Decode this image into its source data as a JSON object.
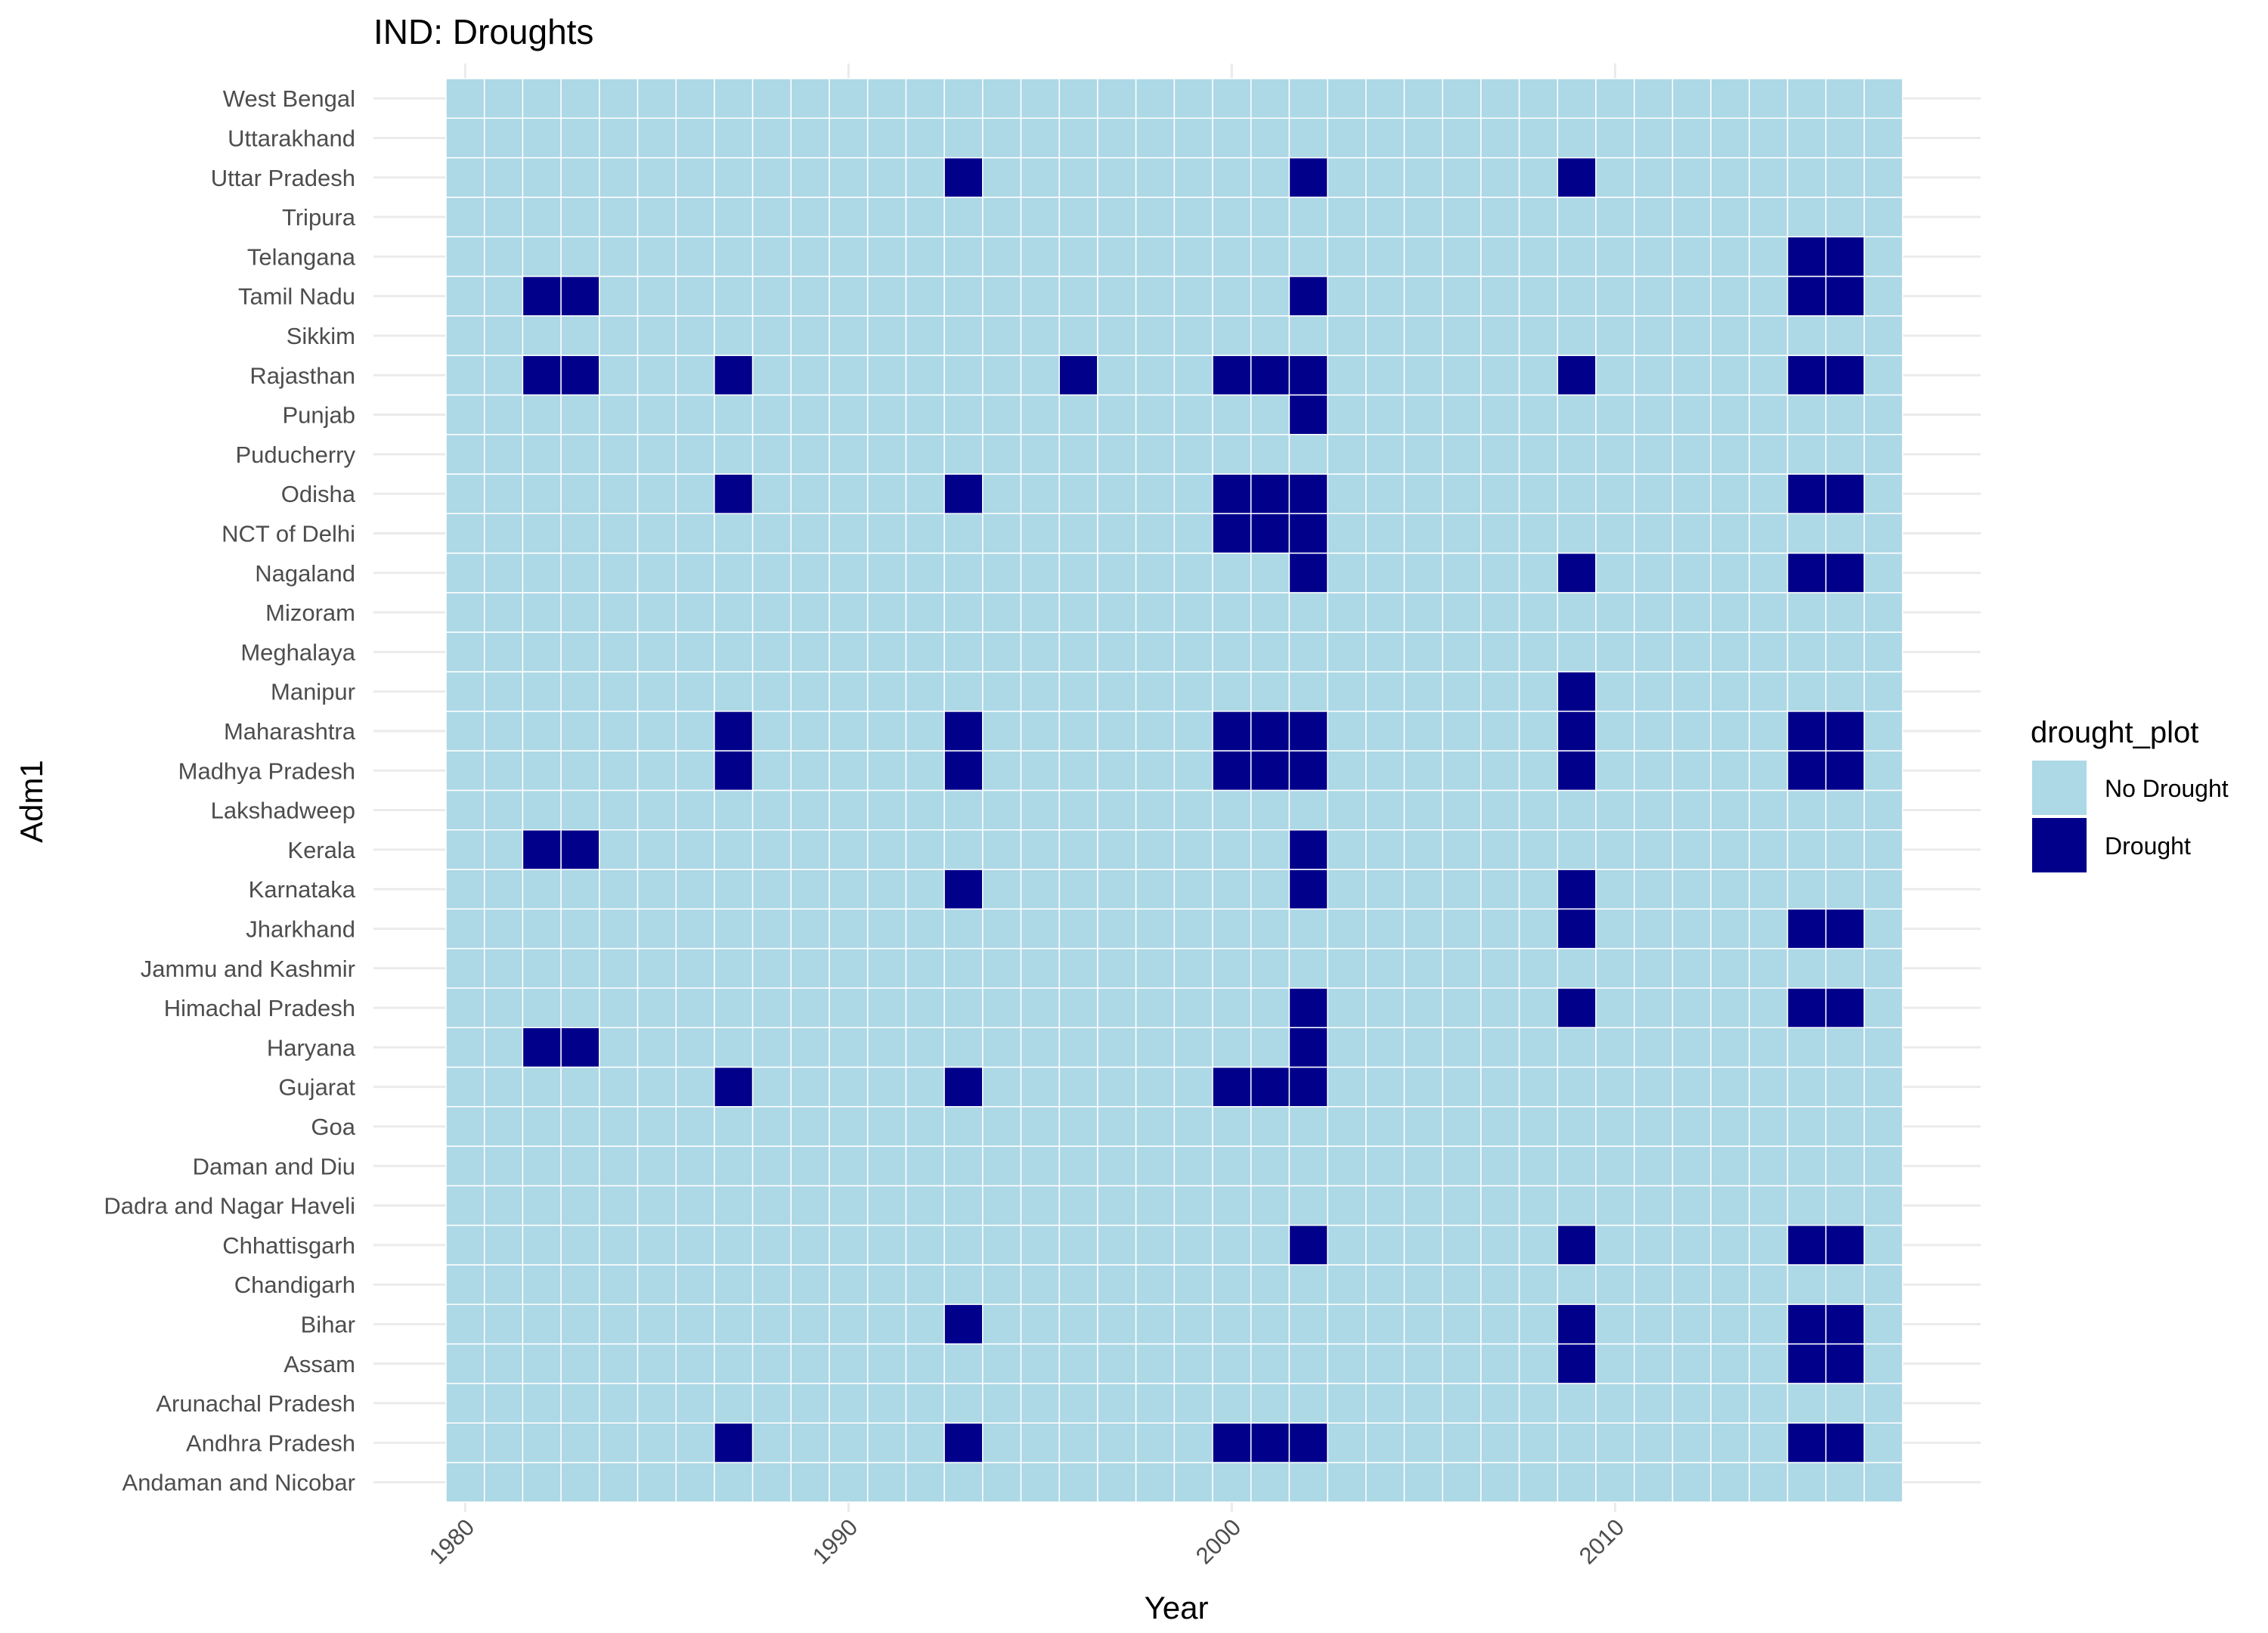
{
  "chart_data": {
    "type": "heatmap",
    "title": "IND: Droughts",
    "xlabel": "Year",
    "ylabel": "Adm1",
    "x_ticks": [
      1980,
      1990,
      2000,
      2010
    ],
    "xlim": [
      1980,
      2017
    ],
    "years": [
      1980,
      1981,
      1982,
      1983,
      1984,
      1985,
      1986,
      1987,
      1988,
      1989,
      1990,
      1991,
      1992,
      1993,
      1994,
      1995,
      1996,
      1997,
      1998,
      1999,
      2000,
      2001,
      2002,
      2003,
      2004,
      2005,
      2006,
      2007,
      2008,
      2009,
      2010,
      2011,
      2012,
      2013,
      2014,
      2015,
      2016,
      2017
    ],
    "regions": [
      "Andaman and Nicobar",
      "Andhra Pradesh",
      "Arunachal Pradesh",
      "Assam",
      "Bihar",
      "Chandigarh",
      "Chhattisgarh",
      "Dadra and Nagar Haveli",
      "Daman and Diu",
      "Goa",
      "Gujarat",
      "Haryana",
      "Himachal Pradesh",
      "Jammu and Kashmir",
      "Jharkhand",
      "Karnataka",
      "Kerala",
      "Lakshadweep",
      "Madhya Pradesh",
      "Maharashtra",
      "Manipur",
      "Meghalaya",
      "Mizoram",
      "Nagaland",
      "NCT of Delhi",
      "Odisha",
      "Puducherry",
      "Punjab",
      "Rajasthan",
      "Sikkim",
      "Tamil Nadu",
      "Telangana",
      "Tripura",
      "Uttar Pradesh",
      "Uttarakhand",
      "West Bengal"
    ],
    "drought_years": {
      "Andhra Pradesh": [
        1987,
        1993,
        2000,
        2001,
        2002,
        2015,
        2016
      ],
      "Assam": [
        2009,
        2015,
        2016
      ],
      "Bihar": [
        1993,
        2009,
        2015,
        2016
      ],
      "Chhattisgarh": [
        2002,
        2009,
        2015,
        2016
      ],
      "Gujarat": [
        1987,
        1993,
        2000,
        2001,
        2002
      ],
      "Haryana": [
        1982,
        1983,
        2002
      ],
      "Himachal Pradesh": [
        2002,
        2009,
        2015,
        2016
      ],
      "Jharkhand": [
        2009,
        2015,
        2016
      ],
      "Karnataka": [
        1993,
        2002,
        2009
      ],
      "Kerala": [
        1982,
        1983,
        2002
      ],
      "Madhya Pradesh": [
        1987,
        1993,
        2000,
        2001,
        2002,
        2009,
        2015,
        2016
      ],
      "Maharashtra": [
        1987,
        1993,
        2000,
        2001,
        2002,
        2009,
        2015,
        2016
      ],
      "Manipur": [
        2009
      ],
      "Nagaland": [
        2002,
        2009,
        2015,
        2016
      ],
      "NCT of Delhi": [
        2000,
        2001,
        2002
      ],
      "Odisha": [
        1987,
        1993,
        2000,
        2001,
        2002,
        2015,
        2016
      ],
      "Punjab": [
        2002
      ],
      "Rajasthan": [
        1982,
        1983,
        1987,
        1996,
        2000,
        2001,
        2002,
        2009,
        2015,
        2016
      ],
      "Tamil Nadu": [
        1982,
        1983,
        2002,
        2015,
        2016
      ],
      "Telangana": [
        2015,
        2016
      ],
      "Uttar Pradesh": [
        1993,
        2002,
        2009
      ]
    },
    "legend": {
      "title": "drought_plot",
      "placement": "right",
      "entries": [
        {
          "label": "No Drought",
          "color": "#add8e6"
        },
        {
          "label": "Drought",
          "color": "#00008b"
        }
      ]
    },
    "grid": true,
    "colors": {
      "no_drought": "#add8e6",
      "drought": "#00008b",
      "cell_border": "#ffffff",
      "gridline": "#ebebeb"
    }
  }
}
